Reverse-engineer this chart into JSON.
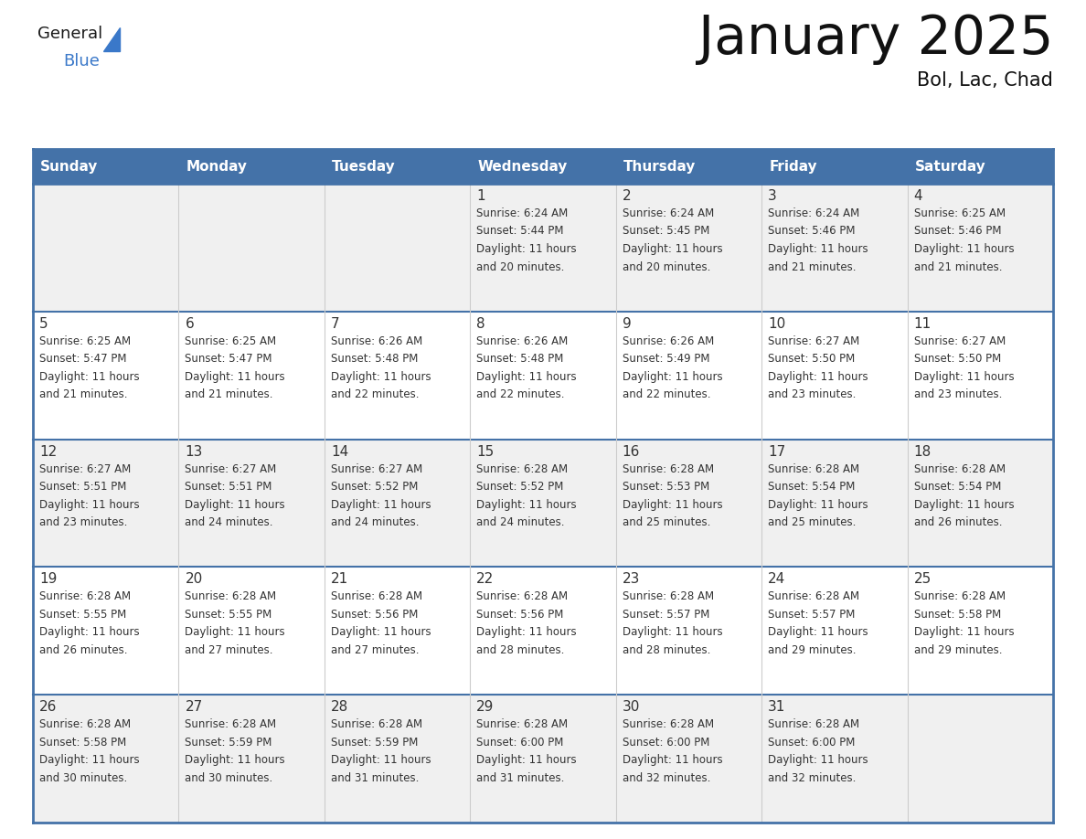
{
  "title": "January 2025",
  "subtitle": "Bol, Lac, Chad",
  "days_of_week": [
    "Sunday",
    "Monday",
    "Tuesday",
    "Wednesday",
    "Thursday",
    "Friday",
    "Saturday"
  ],
  "header_bg_color": "#4472a8",
  "header_text_color": "#ffffff",
  "cell_bg_row0": "#f0f0f0",
  "cell_bg_row1": "#ffffff",
  "cell_bg_row2": "#f0f0f0",
  "cell_bg_row3": "#ffffff",
  "cell_bg_row4": "#f0f0f0",
  "cell_border_color": "#4472a8",
  "cell_inner_border_color": "#cccccc",
  "day_number_color": "#333333",
  "cell_text_color": "#333333",
  "title_color": "#111111",
  "logo_general_color": "#1a1a1a",
  "logo_blue_color": "#3a78c9",
  "logo_triangle_color": "#3a78c9",
  "fig_width": 11.88,
  "fig_height": 9.18,
  "dpi": 100,
  "days": [
    {
      "date": 1,
      "col": 3,
      "row": 0,
      "sunrise": "6:24 AM",
      "sunset": "5:44 PM",
      "daylight_hours": 11,
      "daylight_minutes": 20
    },
    {
      "date": 2,
      "col": 4,
      "row": 0,
      "sunrise": "6:24 AM",
      "sunset": "5:45 PM",
      "daylight_hours": 11,
      "daylight_minutes": 20
    },
    {
      "date": 3,
      "col": 5,
      "row": 0,
      "sunrise": "6:24 AM",
      "sunset": "5:46 PM",
      "daylight_hours": 11,
      "daylight_minutes": 21
    },
    {
      "date": 4,
      "col": 6,
      "row": 0,
      "sunrise": "6:25 AM",
      "sunset": "5:46 PM",
      "daylight_hours": 11,
      "daylight_minutes": 21
    },
    {
      "date": 5,
      "col": 0,
      "row": 1,
      "sunrise": "6:25 AM",
      "sunset": "5:47 PM",
      "daylight_hours": 11,
      "daylight_minutes": 21
    },
    {
      "date": 6,
      "col": 1,
      "row": 1,
      "sunrise": "6:25 AM",
      "sunset": "5:47 PM",
      "daylight_hours": 11,
      "daylight_minutes": 21
    },
    {
      "date": 7,
      "col": 2,
      "row": 1,
      "sunrise": "6:26 AM",
      "sunset": "5:48 PM",
      "daylight_hours": 11,
      "daylight_minutes": 22
    },
    {
      "date": 8,
      "col": 3,
      "row": 1,
      "sunrise": "6:26 AM",
      "sunset": "5:48 PM",
      "daylight_hours": 11,
      "daylight_minutes": 22
    },
    {
      "date": 9,
      "col": 4,
      "row": 1,
      "sunrise": "6:26 AM",
      "sunset": "5:49 PM",
      "daylight_hours": 11,
      "daylight_minutes": 22
    },
    {
      "date": 10,
      "col": 5,
      "row": 1,
      "sunrise": "6:27 AM",
      "sunset": "5:50 PM",
      "daylight_hours": 11,
      "daylight_minutes": 23
    },
    {
      "date": 11,
      "col": 6,
      "row": 1,
      "sunrise": "6:27 AM",
      "sunset": "5:50 PM",
      "daylight_hours": 11,
      "daylight_minutes": 23
    },
    {
      "date": 12,
      "col": 0,
      "row": 2,
      "sunrise": "6:27 AM",
      "sunset": "5:51 PM",
      "daylight_hours": 11,
      "daylight_minutes": 23
    },
    {
      "date": 13,
      "col": 1,
      "row": 2,
      "sunrise": "6:27 AM",
      "sunset": "5:51 PM",
      "daylight_hours": 11,
      "daylight_minutes": 24
    },
    {
      "date": 14,
      "col": 2,
      "row": 2,
      "sunrise": "6:27 AM",
      "sunset": "5:52 PM",
      "daylight_hours": 11,
      "daylight_minutes": 24
    },
    {
      "date": 15,
      "col": 3,
      "row": 2,
      "sunrise": "6:28 AM",
      "sunset": "5:52 PM",
      "daylight_hours": 11,
      "daylight_minutes": 24
    },
    {
      "date": 16,
      "col": 4,
      "row": 2,
      "sunrise": "6:28 AM",
      "sunset": "5:53 PM",
      "daylight_hours": 11,
      "daylight_minutes": 25
    },
    {
      "date": 17,
      "col": 5,
      "row": 2,
      "sunrise": "6:28 AM",
      "sunset": "5:54 PM",
      "daylight_hours": 11,
      "daylight_minutes": 25
    },
    {
      "date": 18,
      "col": 6,
      "row": 2,
      "sunrise": "6:28 AM",
      "sunset": "5:54 PM",
      "daylight_hours": 11,
      "daylight_minutes": 26
    },
    {
      "date": 19,
      "col": 0,
      "row": 3,
      "sunrise": "6:28 AM",
      "sunset": "5:55 PM",
      "daylight_hours": 11,
      "daylight_minutes": 26
    },
    {
      "date": 20,
      "col": 1,
      "row": 3,
      "sunrise": "6:28 AM",
      "sunset": "5:55 PM",
      "daylight_hours": 11,
      "daylight_minutes": 27
    },
    {
      "date": 21,
      "col": 2,
      "row": 3,
      "sunrise": "6:28 AM",
      "sunset": "5:56 PM",
      "daylight_hours": 11,
      "daylight_minutes": 27
    },
    {
      "date": 22,
      "col": 3,
      "row": 3,
      "sunrise": "6:28 AM",
      "sunset": "5:56 PM",
      "daylight_hours": 11,
      "daylight_minutes": 28
    },
    {
      "date": 23,
      "col": 4,
      "row": 3,
      "sunrise": "6:28 AM",
      "sunset": "5:57 PM",
      "daylight_hours": 11,
      "daylight_minutes": 28
    },
    {
      "date": 24,
      "col": 5,
      "row": 3,
      "sunrise": "6:28 AM",
      "sunset": "5:57 PM",
      "daylight_hours": 11,
      "daylight_minutes": 29
    },
    {
      "date": 25,
      "col": 6,
      "row": 3,
      "sunrise": "6:28 AM",
      "sunset": "5:58 PM",
      "daylight_hours": 11,
      "daylight_minutes": 29
    },
    {
      "date": 26,
      "col": 0,
      "row": 4,
      "sunrise": "6:28 AM",
      "sunset": "5:58 PM",
      "daylight_hours": 11,
      "daylight_minutes": 30
    },
    {
      "date": 27,
      "col": 1,
      "row": 4,
      "sunrise": "6:28 AM",
      "sunset": "5:59 PM",
      "daylight_hours": 11,
      "daylight_minutes": 30
    },
    {
      "date": 28,
      "col": 2,
      "row": 4,
      "sunrise": "6:28 AM",
      "sunset": "5:59 PM",
      "daylight_hours": 11,
      "daylight_minutes": 31
    },
    {
      "date": 29,
      "col": 3,
      "row": 4,
      "sunrise": "6:28 AM",
      "sunset": "6:00 PM",
      "daylight_hours": 11,
      "daylight_minutes": 31
    },
    {
      "date": 30,
      "col": 4,
      "row": 4,
      "sunrise": "6:28 AM",
      "sunset": "6:00 PM",
      "daylight_hours": 11,
      "daylight_minutes": 32
    },
    {
      "date": 31,
      "col": 5,
      "row": 4,
      "sunrise": "6:28 AM",
      "sunset": "6:00 PM",
      "daylight_hours": 11,
      "daylight_minutes": 32
    }
  ]
}
